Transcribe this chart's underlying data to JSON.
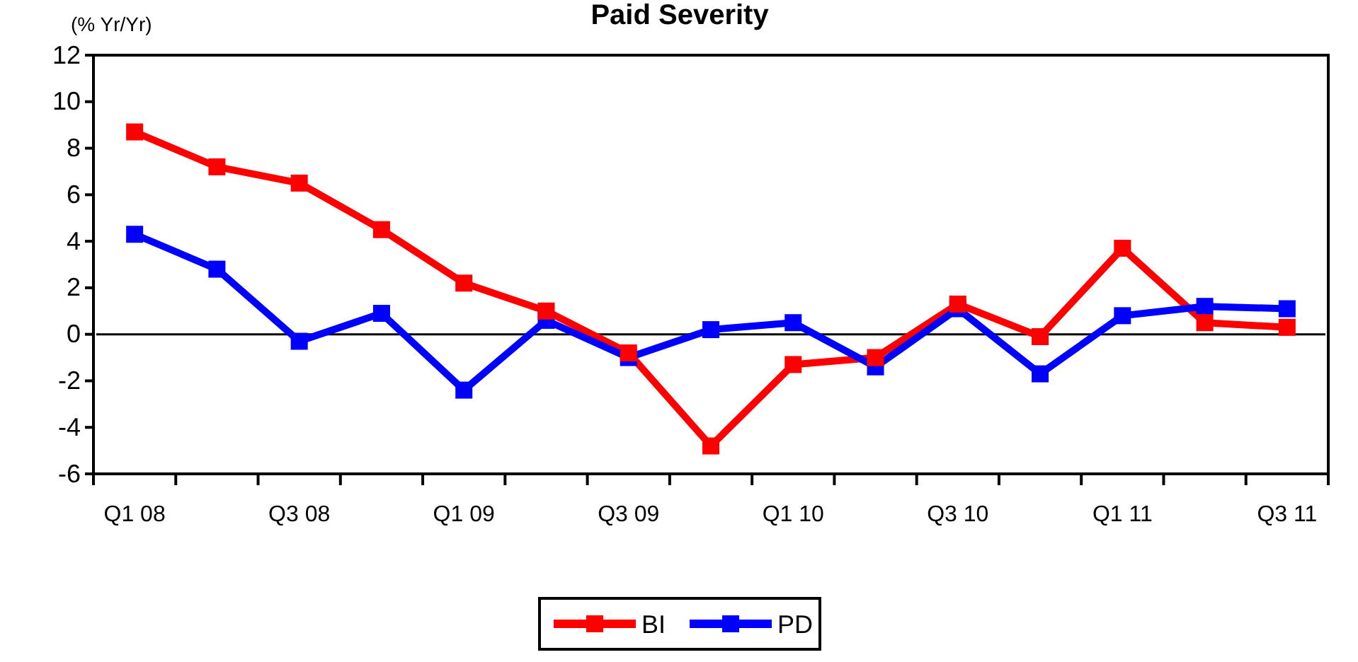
{
  "chart_data": {
    "type": "line",
    "title": "Paid Severity",
    "ylabel": "(% Yr/Yr)",
    "categories": [
      "Q1 08",
      null,
      "Q3 08",
      null,
      "Q1 09",
      null,
      "Q3 09",
      null,
      "Q1 10",
      null,
      "Q3 10",
      null,
      "Q1 11",
      null,
      "Q3 11"
    ],
    "series": [
      {
        "name": "BI",
        "color": "#ff0000",
        "values": [
          8.7,
          7.2,
          6.5,
          4.5,
          2.2,
          1.0,
          -0.8,
          -4.8,
          -1.3,
          -1.0,
          1.3,
          -0.1,
          3.7,
          0.5,
          0.3
        ]
      },
      {
        "name": "PD",
        "color": "#0000ff",
        "values": [
          4.3,
          2.8,
          -0.3,
          0.9,
          -2.4,
          0.6,
          -1.0,
          0.2,
          0.5,
          -1.4,
          1.1,
          -1.7,
          0.8,
          1.2,
          1.1
        ]
      }
    ],
    "ylim": [
      -6,
      12
    ],
    "yticks": [
      -6,
      -4,
      -2,
      0,
      2,
      4,
      6,
      8,
      10,
      12
    ],
    "ref_lines": [
      {
        "axis": "y",
        "value": 0,
        "color": "#000000"
      }
    ],
    "grid": false,
    "legend": "bottom",
    "marker": "square",
    "line_style": "solid"
  }
}
